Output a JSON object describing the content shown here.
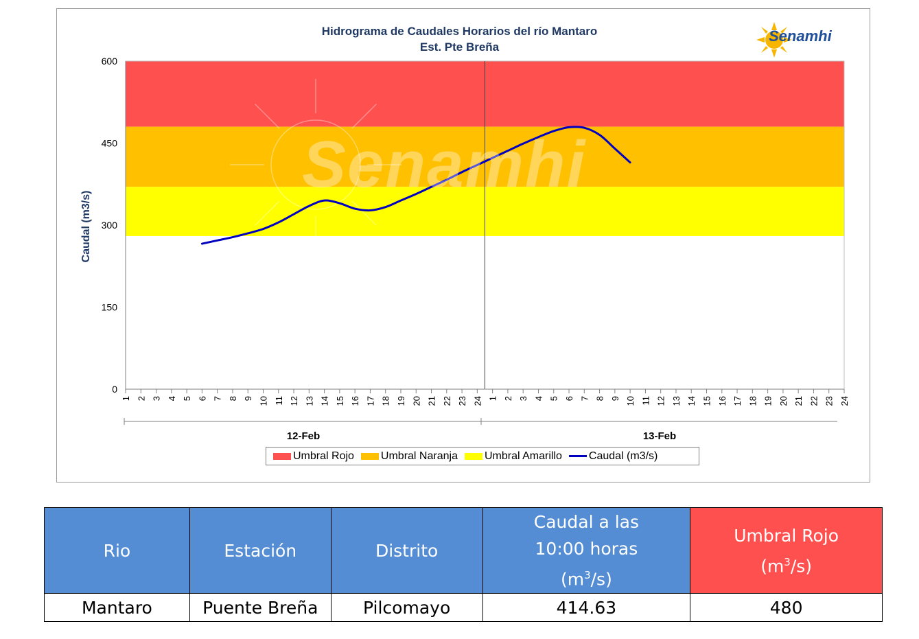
{
  "chart_data": {
    "type": "line",
    "title": "Hidrograma de Caudales Horarios del río Mantaro",
    "subtitle": "Est. Pte Breña",
    "ylabel": "Caudal  (m3/s)",
    "xlabel": "",
    "ylim": [
      0,
      600
    ],
    "yticks": [
      "0",
      "150",
      "300",
      "450",
      "600"
    ],
    "x_hour_labels": [
      "1",
      "2",
      "3",
      "4",
      "5",
      "6",
      "7",
      "8",
      "9",
      "10",
      "11",
      "12",
      "13",
      "14",
      "15",
      "16",
      "17",
      "18",
      "19",
      "20",
      "21",
      "22",
      "23",
      "24"
    ],
    "x_groups": [
      "12-Feb",
      "13-Feb"
    ],
    "bands": [
      {
        "name": "Umbral Rojo",
        "from": 480,
        "to": 600,
        "color": "#ff5050"
      },
      {
        "name": "Umbral Naranja",
        "from": 370,
        "to": 480,
        "color": "#ffc000"
      },
      {
        "name": "Umbral Amarillo",
        "from": 280,
        "to": 370,
        "color": "#ffff00"
      }
    ],
    "series": [
      {
        "name": "Caudal (m3/s)",
        "color": "#0000c0",
        "x": [
          6,
          7,
          8,
          9,
          10,
          11,
          12,
          13,
          14,
          15,
          16,
          17,
          18,
          19,
          20,
          21,
          22,
          23,
          24,
          25,
          26,
          27,
          28,
          29,
          30,
          31,
          32,
          33,
          34
        ],
        "values": [
          266,
          272,
          278,
          285,
          293,
          305,
          320,
          335,
          345,
          340,
          330,
          327,
          333,
          345,
          357,
          370,
          383,
          397,
          410,
          423,
          436,
          449,
          461,
          472,
          479,
          478,
          465,
          440,
          414.63
        ]
      }
    ],
    "legend_position": "bottom"
  },
  "legend": {
    "rojo": "Umbral Rojo",
    "naranja": "Umbral Naranja",
    "amarillo": "Umbral Amarillo",
    "caudal": "Caudal (m3/s)"
  },
  "logo": {
    "name": "Senamhi",
    "icon": "sun-logo-icon"
  },
  "watermark": "Senamhi",
  "table": {
    "headers": {
      "rio": "Rio",
      "estacion": "Estación",
      "distrito": "Distrito",
      "caudal_line1": "Caudal a las",
      "caudal_line2": "10:00 horas",
      "unit_open": "(m",
      "unit_sup": "3",
      "unit_close": "/s)",
      "umbral_line1": "Umbral Rojo"
    },
    "row": {
      "rio": "Mantaro",
      "estacion": "Puente Breña",
      "distrito": "Pilcomayo",
      "caudal": "414.63",
      "umbral": "480"
    }
  },
  "colors": {
    "header_blue": "#548dd4",
    "header_red": "#ff5050",
    "title_navy": "#1f3864"
  }
}
